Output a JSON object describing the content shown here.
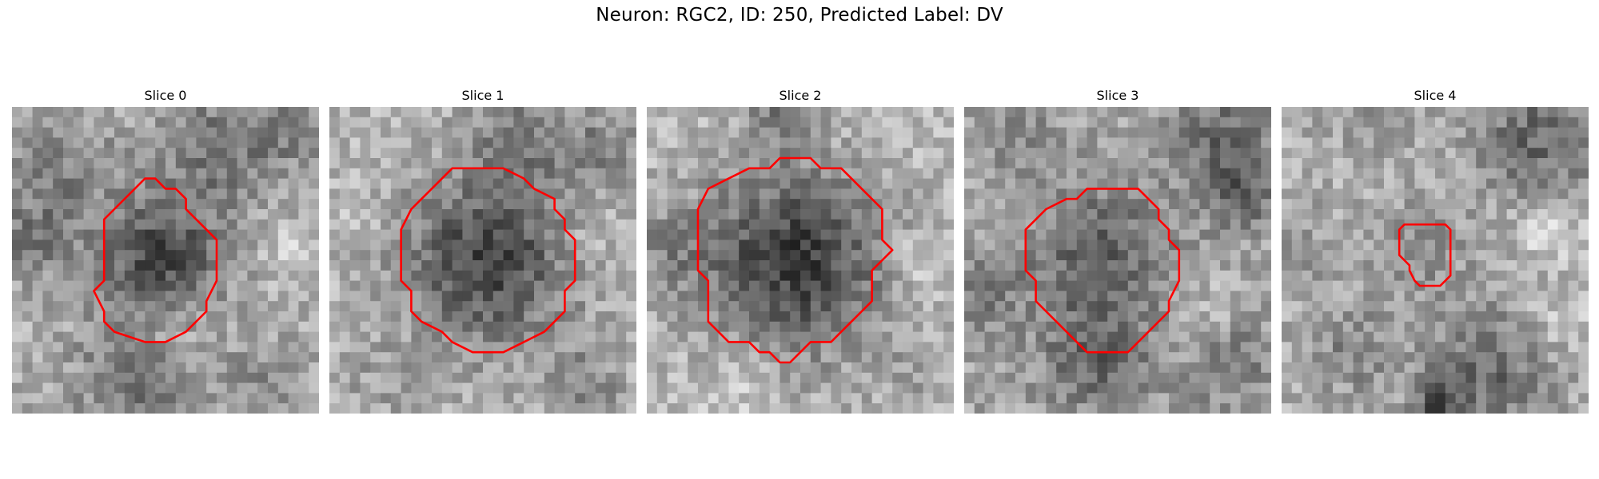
{
  "title": "Neuron: RGC2, ID: 250, Predicted Label: DV",
  "contour_color": "#ff0000",
  "grid_size": 30,
  "slices": [
    {
      "label": "Slice 0",
      "contour": [
        [
          13,
          7
        ],
        [
          14,
          7
        ],
        [
          15,
          8
        ],
        [
          16,
          8
        ],
        [
          17,
          9
        ],
        [
          17,
          10
        ],
        [
          20,
          13
        ],
        [
          20,
          17
        ],
        [
          19,
          19
        ],
        [
          19,
          20
        ],
        [
          18,
          21
        ],
        [
          17,
          22
        ],
        [
          15,
          23
        ],
        [
          13,
          23
        ],
        [
          10,
          22
        ],
        [
          9,
          21
        ],
        [
          9,
          20
        ],
        [
          8,
          18
        ],
        [
          9,
          17
        ],
        [
          9,
          11
        ],
        [
          10,
          10
        ],
        [
          12,
          8
        ],
        [
          13,
          7
        ]
      ]
    },
    {
      "label": "Slice 1",
      "contour": [
        [
          12,
          6
        ],
        [
          17,
          6
        ],
        [
          19,
          7
        ],
        [
          20,
          8
        ],
        [
          22,
          9
        ],
        [
          22,
          10
        ],
        [
          23,
          11
        ],
        [
          23,
          12
        ],
        [
          24,
          13
        ],
        [
          24,
          17
        ],
        [
          23,
          18
        ],
        [
          23,
          20
        ],
        [
          22,
          21
        ],
        [
          21,
          22
        ],
        [
          19,
          23
        ],
        [
          17,
          24
        ],
        [
          14,
          24
        ],
        [
          12,
          23
        ],
        [
          11,
          22
        ],
        [
          9,
          21
        ],
        [
          8,
          20
        ],
        [
          8,
          18
        ],
        [
          7,
          17
        ],
        [
          7,
          12
        ],
        [
          8,
          10
        ],
        [
          9,
          9
        ],
        [
          10,
          8
        ],
        [
          12,
          6
        ]
      ]
    },
    {
      "label": "Slice 2",
      "contour": [
        [
          13,
          5
        ],
        [
          16,
          5
        ],
        [
          17,
          6
        ],
        [
          19,
          6
        ],
        [
          20,
          7
        ],
        [
          21,
          8
        ],
        [
          22,
          9
        ],
        [
          23,
          10
        ],
        [
          23,
          13
        ],
        [
          24,
          14
        ],
        [
          23,
          15
        ],
        [
          22,
          16
        ],
        [
          22,
          19
        ],
        [
          21,
          20
        ],
        [
          20,
          21
        ],
        [
          19,
          22
        ],
        [
          18,
          23
        ],
        [
          16,
          23
        ],
        [
          15,
          24
        ],
        [
          14,
          25
        ],
        [
          13,
          25
        ],
        [
          12,
          24
        ],
        [
          11,
          24
        ],
        [
          10,
          23
        ],
        [
          8,
          23
        ],
        [
          7,
          22
        ],
        [
          6,
          21
        ],
        [
          6,
          17
        ],
        [
          5,
          16
        ],
        [
          5,
          10
        ],
        [
          6,
          8
        ],
        [
          8,
          7
        ],
        [
          10,
          6
        ],
        [
          12,
          6
        ],
        [
          13,
          5
        ]
      ]
    },
    {
      "label": "Slice 3",
      "contour": [
        [
          10,
          9
        ],
        [
          11,
          9
        ],
        [
          12,
          8
        ],
        [
          15,
          8
        ],
        [
          17,
          8
        ],
        [
          18,
          9
        ],
        [
          19,
          10
        ],
        [
          19,
          11
        ],
        [
          20,
          12
        ],
        [
          20,
          13
        ],
        [
          21,
          14
        ],
        [
          21,
          17
        ],
        [
          20,
          19
        ],
        [
          20,
          20
        ],
        [
          19,
          21
        ],
        [
          17,
          23
        ],
        [
          16,
          24
        ],
        [
          14,
          24
        ],
        [
          12,
          24
        ],
        [
          11,
          23
        ],
        [
          9,
          21
        ],
        [
          8,
          20
        ],
        [
          7,
          19
        ],
        [
          7,
          17
        ],
        [
          6,
          16
        ],
        [
          6,
          12
        ],
        [
          7,
          11
        ],
        [
          8,
          10
        ],
        [
          10,
          9
        ]
      ]
    },
    {
      "label": "Slice 4",
      "contour": [
        [
          12,
          11.5
        ],
        [
          16,
          11.5
        ],
        [
          16.5,
          12
        ],
        [
          16.5,
          16.5
        ],
        [
          15.5,
          17.5
        ],
        [
          13.5,
          17.5
        ],
        [
          13,
          17
        ],
        [
          12.5,
          16
        ],
        [
          12.5,
          15.5
        ],
        [
          12,
          15
        ],
        [
          11.5,
          14.5
        ],
        [
          11.5,
          12
        ],
        [
          12,
          11.5
        ]
      ]
    }
  ]
}
